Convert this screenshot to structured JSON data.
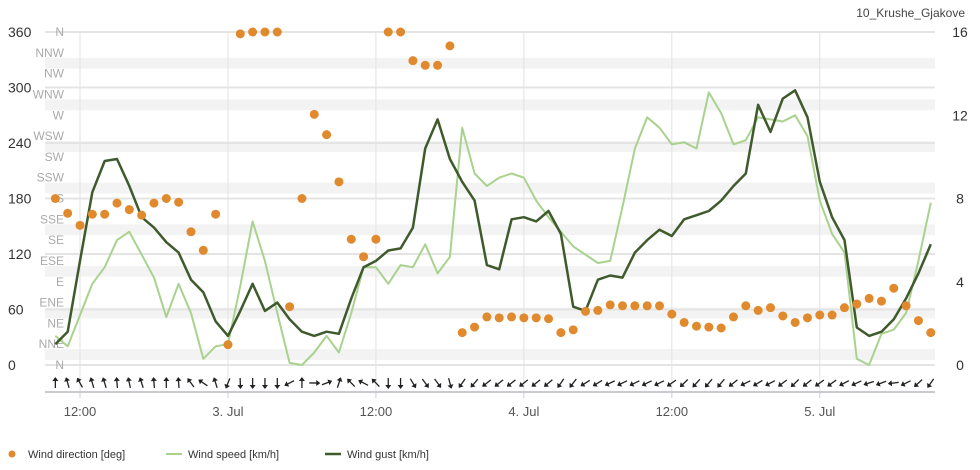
{
  "chart_data": {
    "type": "line",
    "station_label": "10_Krushe_Gjakove",
    "x": [
      "2 Jul 10:00",
      "2 Jul 11:00",
      "2 Jul 12:00",
      "2 Jul 13:00",
      "2 Jul 14:00",
      "2 Jul 15:00",
      "2 Jul 16:00",
      "2 Jul 17:00",
      "2 Jul 18:00",
      "2 Jul 19:00",
      "2 Jul 20:00",
      "2 Jul 21:00",
      "2 Jul 22:00",
      "2 Jul 23:00",
      "3 Jul 00:00",
      "3 Jul 01:00",
      "3 Jul 02:00",
      "3 Jul 03:00",
      "3 Jul 04:00",
      "3 Jul 05:00",
      "3 Jul 06:00",
      "3 Jul 07:00",
      "3 Jul 08:00",
      "3 Jul 09:00",
      "3 Jul 10:00",
      "3 Jul 11:00",
      "3 Jul 12:00",
      "3 Jul 13:00",
      "3 Jul 14:00",
      "3 Jul 15:00",
      "3 Jul 16:00",
      "3 Jul 17:00",
      "3 Jul 18:00",
      "3 Jul 19:00",
      "3 Jul 20:00",
      "3 Jul 21:00",
      "3 Jul 22:00",
      "3 Jul 23:00",
      "4 Jul 00:00",
      "4 Jul 01:00",
      "4 Jul 02:00",
      "4 Jul 03:00",
      "4 Jul 04:00",
      "4 Jul 05:00",
      "4 Jul 06:00",
      "4 Jul 07:00",
      "4 Jul 08:00",
      "4 Jul 09:00",
      "4 Jul 10:00",
      "4 Jul 11:00",
      "4 Jul 12:00",
      "4 Jul 13:00",
      "4 Jul 14:00",
      "4 Jul 15:00",
      "4 Jul 16:00",
      "4 Jul 17:00",
      "4 Jul 18:00",
      "4 Jul 19:00",
      "4 Jul 20:00",
      "4 Jul 21:00",
      "4 Jul 22:00",
      "4 Jul 23:00",
      "5 Jul 00:00",
      "5 Jul 01:00",
      "5 Jul 02:00",
      "5 Jul 03:00",
      "5 Jul 04:00",
      "5 Jul 05:00",
      "5 Jul 06:00",
      "5 Jul 07:00",
      "5 Jul 08:00",
      "5 Jul 09:00"
    ],
    "series": [
      {
        "name": "Wind direction [deg]",
        "kind": "scatter",
        "axis": "left",
        "color": "#e0892d",
        "values": [
          180,
          164,
          151,
          163,
          163,
          175,
          168,
          162,
          175,
          180,
          176,
          144,
          124,
          163,
          22,
          358,
          360,
          360,
          360,
          63,
          180,
          271,
          249,
          198,
          136,
          117,
          136,
          360,
          360,
          329,
          324,
          324,
          345,
          35,
          41,
          52,
          51,
          52,
          51,
          51,
          50,
          35,
          38,
          58,
          59,
          65,
          64,
          64,
          64,
          64,
          55,
          46,
          42,
          41,
          40,
          52,
          64,
          59,
          62,
          53,
          46,
          51,
          54,
          54,
          62,
          66,
          72,
          69,
          83,
          64,
          48,
          35
        ]
      },
      {
        "name": "Wind speed [km/h]",
        "kind": "line",
        "axis": "right",
        "color": "#a9d28f",
        "values": [
          1.4,
          0.9,
          2.4,
          3.9,
          4.7,
          6.0,
          6.4,
          5.3,
          4.2,
          2.3,
          3.9,
          2.5,
          0.3,
          0.9,
          1.0,
          3.8,
          6.9,
          5.0,
          2.5,
          0.1,
          0,
          0.6,
          1.4,
          0.6,
          2.5,
          4.7,
          4.7,
          3.9,
          4.8,
          4.7,
          5.8,
          4.4,
          5.2,
          11.4,
          9.2,
          8.6,
          9.0,
          9.2,
          9.0,
          7.9,
          7.1,
          6.4,
          5.7,
          5.3,
          4.9,
          5.0,
          7.6,
          10.4,
          11.9,
          11.4,
          10.6,
          10.7,
          10.4,
          13.1,
          12.1,
          10.6,
          10.8,
          11.9,
          11.8,
          11.7,
          12.0,
          11.0,
          7.9,
          6.3,
          5.4,
          0.3,
          0,
          1.5,
          1.7,
          2.5,
          5.0,
          7.8
        ]
      },
      {
        "name": "Wind gust [km/h]",
        "kind": "line",
        "axis": "right",
        "color": "#3f5a2c",
        "values": [
          1.0,
          1.6,
          5.0,
          8.3,
          9.8,
          9.9,
          8.6,
          7.1,
          6.6,
          5.9,
          5.4,
          4.1,
          3.5,
          2.1,
          1.4,
          2.6,
          3.9,
          2.6,
          3.0,
          2.2,
          1.6,
          1.4,
          1.6,
          1.5,
          3.2,
          4.7,
          5.0,
          5.5,
          5.6,
          6.6,
          10.4,
          11.8,
          9.9,
          8.8,
          7.9,
          4.8,
          4.6,
          7.0,
          7.1,
          6.9,
          7.4,
          6.3,
          2.8,
          2.6,
          4.1,
          4.3,
          4.2,
          5.4,
          6.0,
          6.5,
          6.2,
          7.0,
          7.2,
          7.4,
          7.9,
          8.6,
          9.2,
          12.5,
          11.2,
          12.8,
          13.2,
          11.9,
          8.8,
          7.1,
          6.0,
          1.8,
          1.4,
          1.6,
          2.2,
          3.2,
          4.4,
          5.8
        ]
      }
    ],
    "left_axis": {
      "range": [
        0,
        360
      ],
      "ticks": [
        "0",
        "60",
        "120",
        "180",
        "240",
        "300",
        "360"
      ],
      "compass_labels": [
        "N",
        "NNE",
        "NE",
        "ENE",
        "E",
        "ESE",
        "SE",
        "SSE",
        "S",
        "SSW",
        "SW",
        "WSW",
        "W",
        "WNW",
        "NW",
        "NNW",
        "N"
      ]
    },
    "right_axis": {
      "range": [
        0,
        16
      ],
      "ticks": [
        "0",
        "4",
        "8",
        "12",
        "16"
      ]
    },
    "x_ticks": [
      {
        "label": "12:00",
        "time": "2 Jul 12:00"
      },
      {
        "label": "3. Jul",
        "time": "3 Jul 00:00"
      },
      {
        "label": "12:00",
        "time": "3 Jul 12:00"
      },
      {
        "label": "4. Jul",
        "time": "4 Jul 00:00"
      },
      {
        "label": "12:00",
        "time": "4 Jul 12:00"
      },
      {
        "label": "5. Jul",
        "time": "5 Jul 00:00"
      }
    ],
    "direction_arrows": true,
    "grid": "alternating horizontal bands",
    "legend_position": "bottom-left"
  }
}
